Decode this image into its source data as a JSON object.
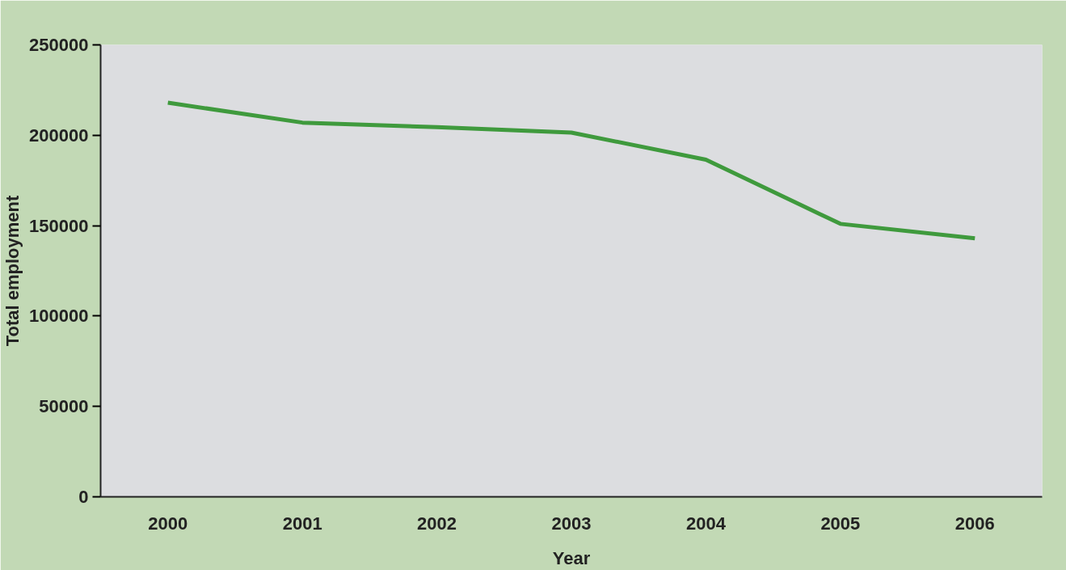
{
  "chart_data": {
    "type": "line",
    "xlabel": "Year",
    "ylabel": "Total employment",
    "categories": [
      "2000",
      "2001",
      "2002",
      "2003",
      "2004",
      "2005",
      "2006"
    ],
    "series": [
      {
        "color": "#3f9a3d",
        "values": [
          218000,
          207000,
          204500,
          201500,
          186500,
          151000,
          143000
        ]
      }
    ],
    "ylim": [
      0,
      250000
    ],
    "yticks": [
      0,
      50000,
      100000,
      150000,
      200000,
      250000
    ],
    "grid": false,
    "marker": "none",
    "line_style": "solid"
  }
}
